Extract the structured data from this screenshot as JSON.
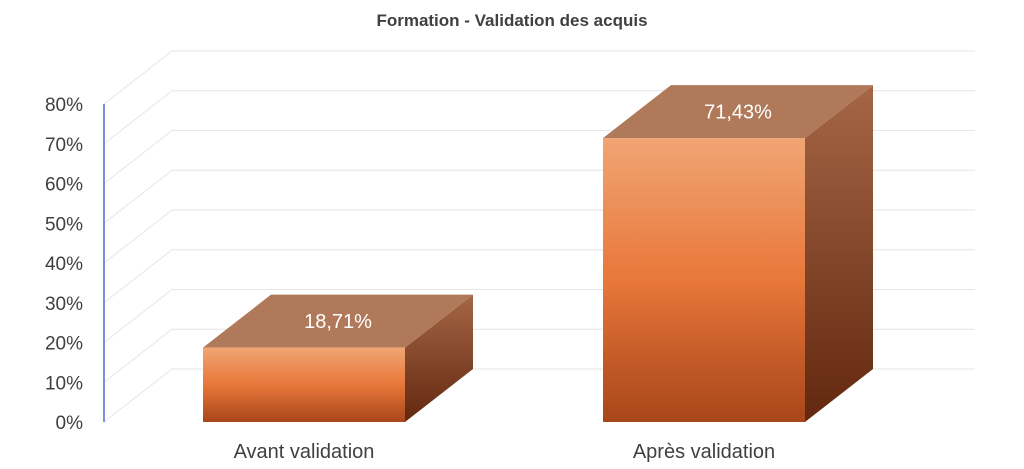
{
  "chart_data": {
    "type": "bar",
    "title": "Formation - Validation des acquis",
    "categories": [
      "Avant validation",
      "Après validation"
    ],
    "values": [
      18.71,
      71.43
    ],
    "data_labels": [
      "18,71%",
      "71,43%"
    ],
    "y_ticks": [
      "0%",
      "10%",
      "20%",
      "30%",
      "40%",
      "50%",
      "60%",
      "70%",
      "80%"
    ],
    "ylim": [
      0,
      80
    ],
    "xlabel": "",
    "ylabel": "",
    "grid": true,
    "legend": "none",
    "style": "3d-column"
  },
  "colors": {
    "front_top": "#f0a070",
    "front_mid": "#e8773a",
    "front_bottom": "#b04a1a",
    "top_face": "#b07a5a",
    "side_top": "#a06040",
    "side_bottom": "#6a2a10",
    "gridline": "#e6e6e6",
    "axis_line": "#4a6fd8",
    "text": "#404040"
  }
}
